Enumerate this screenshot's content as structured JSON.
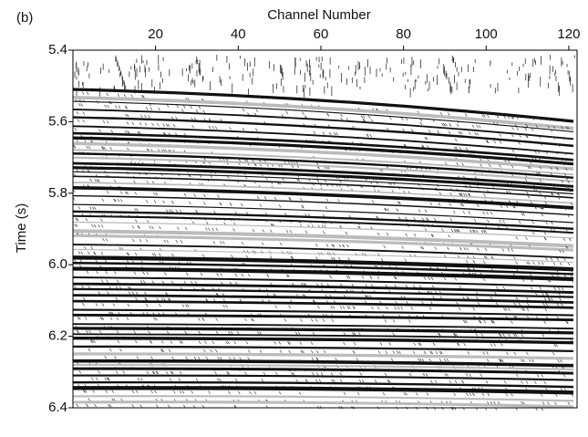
{
  "chart_data": {
    "type": "seismic",
    "panel_label": "(b)",
    "x_label": "Channel Number",
    "y_label": "Time (s)",
    "xlim": [
      0,
      122
    ],
    "xticks": [
      20,
      40,
      60,
      80,
      100,
      120
    ],
    "ylim": [
      6.4,
      5.4
    ],
    "yticks": [
      {
        "value": 5.4,
        "label": "5.4"
      },
      {
        "value": 5.6,
        "label": "5.6"
      },
      {
        "value": 5.8,
        "label": "5.8"
      },
      {
        "value": 6,
        "label": "6.0"
      },
      {
        "value": 6.2,
        "label": "6.2"
      },
      {
        "value": 6.4,
        "label": "6.4"
      }
    ]
  }
}
